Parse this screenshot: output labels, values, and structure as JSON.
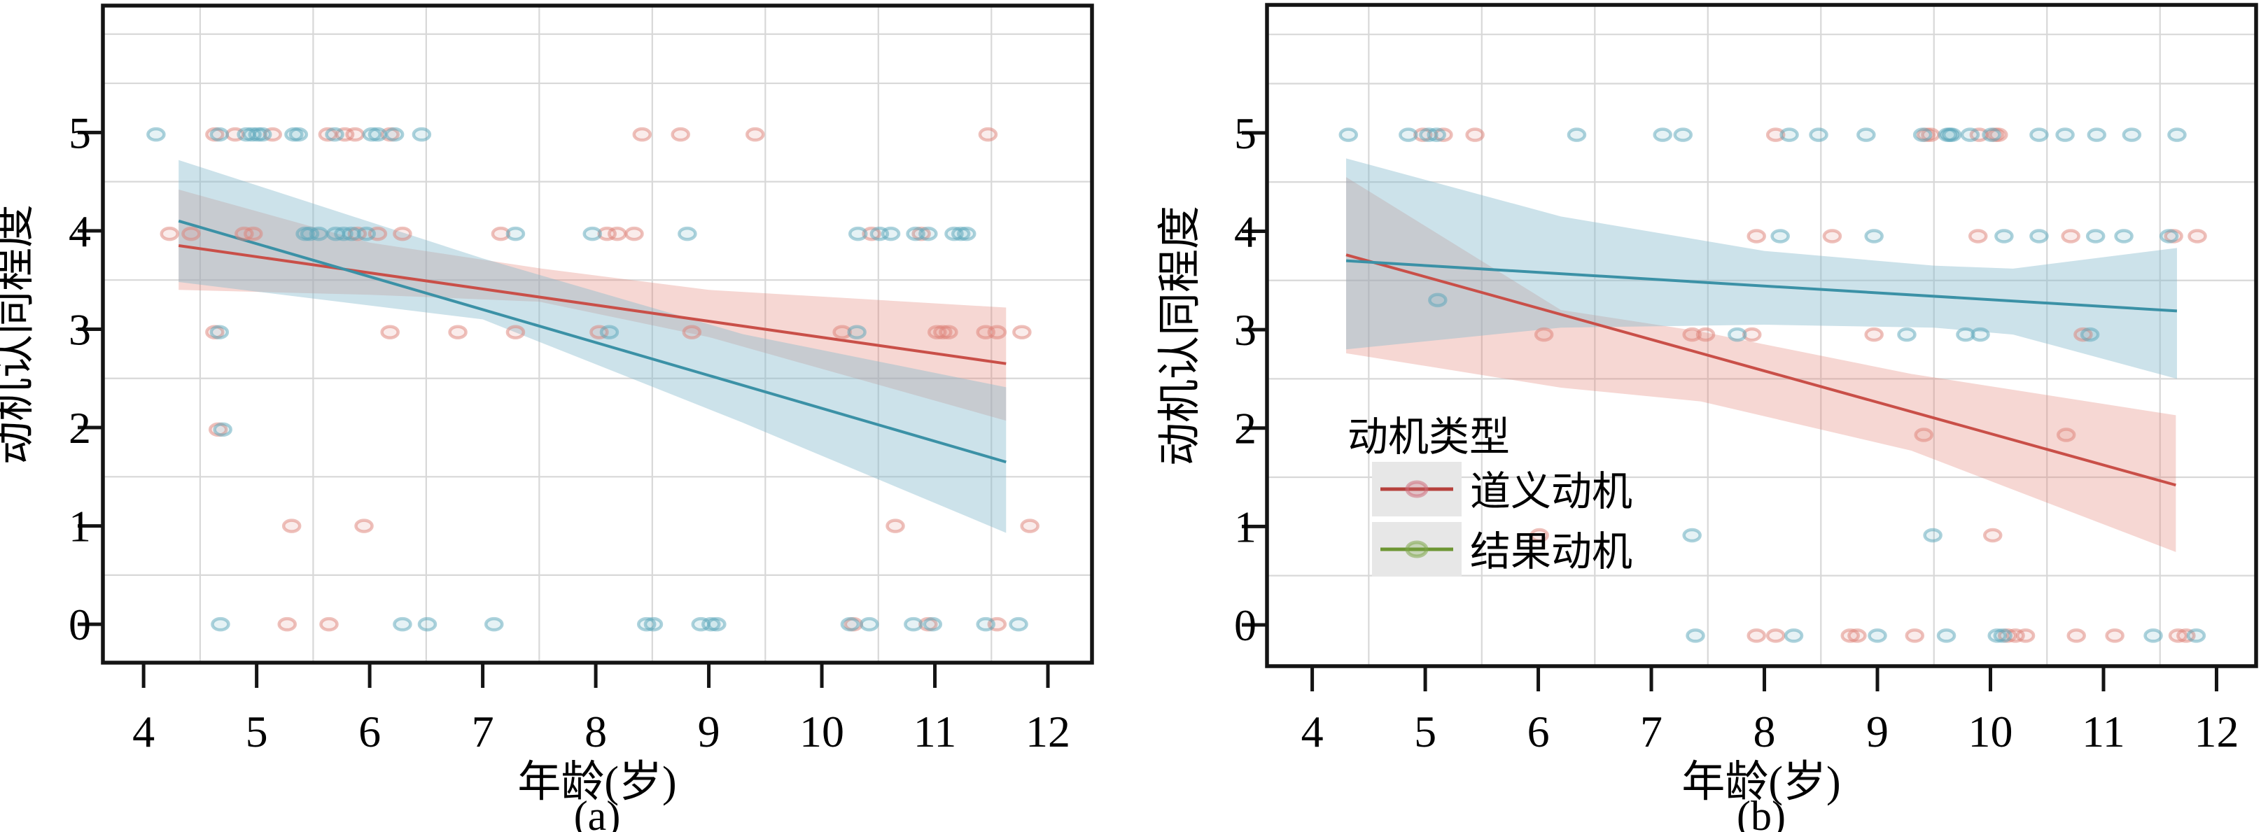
{
  "figure_title": "",
  "chart_data": [
    {
      "type": "scatter",
      "panel_id": "a",
      "caption": "(a)",
      "xlabel": "年龄(岁)",
      "ylabel": "动机认同程度",
      "x_ticks": [
        4,
        5,
        6,
        7,
        8,
        9,
        10,
        11,
        12
      ],
      "y_ticks": [
        0,
        1,
        2,
        3,
        4,
        5
      ],
      "xlim": [
        3.64,
        12.39
      ],
      "ylim": [
        -0.39,
        6.29
      ],
      "grid_x": [
        4.5,
        5.5,
        6.5,
        7.5,
        8.5,
        9.5,
        10.5,
        11.5
      ],
      "grid_y": [
        0.5,
        1.5,
        2.5,
        3.5,
        4.5,
        5.5,
        6.0
      ],
      "grid_on": true,
      "legend_position": "none",
      "series": [
        {
          "name": "道义动机",
          "point_color": "#dd8278",
          "line_color": "#c94f48",
          "band_color": "#e07a6d",
          "band_opacity": 0.3,
          "points": [
            [
              4.63,
              4.98
            ],
            [
              4.81,
              4.98
            ],
            [
              5.14,
              4.98
            ],
            [
              5.63,
              4.98
            ],
            [
              5.78,
              4.98
            ],
            [
              5.87,
              4.98
            ],
            [
              6.18,
              4.98
            ],
            [
              8.41,
              4.98
            ],
            [
              8.75,
              4.98
            ],
            [
              9.41,
              4.98
            ],
            [
              11.47,
              4.98
            ],
            [
              4.23,
              3.97
            ],
            [
              4.42,
              3.97
            ],
            [
              4.89,
              3.97
            ],
            [
              4.97,
              3.97
            ],
            [
              5.89,
              3.97
            ],
            [
              6.07,
              3.97
            ],
            [
              6.29,
              3.97
            ],
            [
              7.16,
              3.97
            ],
            [
              8.1,
              3.97
            ],
            [
              8.19,
              3.97
            ],
            [
              8.34,
              3.97
            ],
            [
              10.44,
              3.97
            ],
            [
              10.88,
              3.97
            ],
            [
              4.63,
              2.97
            ],
            [
              6.18,
              2.97
            ],
            [
              6.78,
              2.97
            ],
            [
              7.29,
              2.97
            ],
            [
              8.03,
              2.97
            ],
            [
              8.85,
              2.97
            ],
            [
              10.18,
              2.97
            ],
            [
              11.02,
              2.97
            ],
            [
              11.07,
              2.97
            ],
            [
              11.12,
              2.97
            ],
            [
              11.45,
              2.97
            ],
            [
              11.55,
              2.97
            ],
            [
              11.77,
              2.97
            ],
            [
              4.66,
              1.98
            ],
            [
              5.31,
              1.0
            ],
            [
              5.95,
              1.0
            ],
            [
              10.65,
              1.0
            ],
            [
              11.84,
              1.0
            ],
            [
              5.27,
              0.0
            ],
            [
              5.64,
              0.0
            ],
            [
              10.28,
              0.0
            ],
            [
              10.94,
              0.0
            ],
            [
              11.55,
              0.0
            ]
          ],
          "trend": {
            "x": [
              4.31,
              11.63
            ],
            "y": [
              3.85,
              2.65
            ]
          },
          "band": {
            "x": [
              4.31,
              6.0,
              7.5,
              9.0,
              11.63
            ],
            "upper": [
              4.42,
              3.88,
              3.62,
              3.4,
              3.22
            ],
            "lower": [
              3.4,
              3.35,
              3.28,
              2.92,
              2.07
            ]
          }
        },
        {
          "name": "结果动机",
          "point_color": "#5aa5ba",
          "line_color": "#3b91a6",
          "band_color": "#85b9cd",
          "band_opacity": 0.42,
          "points": [
            [
              4.11,
              4.98
            ],
            [
              4.67,
              4.98
            ],
            [
              4.91,
              4.98
            ],
            [
              4.96,
              4.98
            ],
            [
              5.01,
              4.98
            ],
            [
              5.05,
              4.98
            ],
            [
              5.33,
              4.98
            ],
            [
              5.37,
              4.98
            ],
            [
              5.69,
              4.98
            ],
            [
              6.02,
              4.98
            ],
            [
              6.07,
              4.98
            ],
            [
              6.22,
              4.98
            ],
            [
              6.46,
              4.98
            ],
            [
              5.43,
              3.97
            ],
            [
              5.47,
              3.97
            ],
            [
              5.55,
              3.97
            ],
            [
              5.7,
              3.97
            ],
            [
              5.77,
              3.97
            ],
            [
              5.84,
              3.97
            ],
            [
              5.97,
              3.97
            ],
            [
              7.29,
              3.97
            ],
            [
              7.97,
              3.97
            ],
            [
              8.81,
              3.97
            ],
            [
              10.32,
              3.97
            ],
            [
              10.51,
              3.97
            ],
            [
              10.61,
              3.97
            ],
            [
              10.83,
              3.97
            ],
            [
              10.94,
              3.97
            ],
            [
              11.17,
              3.97
            ],
            [
              11.23,
              3.97
            ],
            [
              11.28,
              3.97
            ],
            [
              4.67,
              2.97
            ],
            [
              8.12,
              2.97
            ],
            [
              10.31,
              2.97
            ],
            [
              4.7,
              1.98
            ],
            [
              4.68,
              0.0
            ],
            [
              6.29,
              0.0
            ],
            [
              6.51,
              0.0
            ],
            [
              7.1,
              0.0
            ],
            [
              8.45,
              0.0
            ],
            [
              8.51,
              0.0
            ],
            [
              8.93,
              0.0
            ],
            [
              9.02,
              0.0
            ],
            [
              9.07,
              0.0
            ],
            [
              10.25,
              0.0
            ],
            [
              10.42,
              0.0
            ],
            [
              10.81,
              0.0
            ],
            [
              10.98,
              0.0
            ],
            [
              11.45,
              0.0
            ],
            [
              11.74,
              0.0
            ]
          ],
          "trend": {
            "x": [
              4.31,
              11.63
            ],
            "y": [
              4.1,
              1.65
            ]
          },
          "band": {
            "x": [
              4.31,
              7.0,
              9.3,
              11.63
            ],
            "upper": [
              4.72,
              3.72,
              2.95,
              2.41
            ],
            "lower": [
              3.48,
              3.1,
              2.05,
              0.93
            ]
          }
        }
      ]
    },
    {
      "type": "scatter",
      "panel_id": "b",
      "caption": "(b)",
      "xlabel": "年龄(岁)",
      "ylabel": "动机认同程度",
      "x_ticks": [
        4,
        5,
        6,
        7,
        8,
        9,
        10,
        11,
        12
      ],
      "y_ticks": [
        0,
        1,
        2,
        3,
        4,
        5
      ],
      "xlim": [
        3.6,
        12.35
      ],
      "ylim": [
        -0.42,
        6.3
      ],
      "grid_x": [
        4.5,
        5.5,
        6.5,
        7.5,
        8.5,
        9.5,
        10.5,
        11.5
      ],
      "grid_y": [
        0.5,
        1.5,
        2.5,
        3.5,
        4.5,
        5.5,
        6.0
      ],
      "grid_on": true,
      "legend_position": "inside-left-middle",
      "legend": {
        "title": "动机类型",
        "swatch_bg": "#e7e7e7",
        "entries": [
          {
            "label": "道义动机",
            "line_color": "#b6413c",
            "marker_color": "#cf6f7d"
          },
          {
            "label": "结果动机",
            "line_color": "#6d9634",
            "marker_color": "#7fa84d"
          }
        ]
      },
      "series": [
        {
          "name": "道义动机",
          "point_color": "#dd8278",
          "line_color": "#c94f48",
          "band_color": "#e07a6d",
          "band_opacity": 0.3,
          "points": [
            [
              4.98,
              4.98
            ],
            [
              5.16,
              4.98
            ],
            [
              5.44,
              4.98
            ],
            [
              8.1,
              4.98
            ],
            [
              9.43,
              4.98
            ],
            [
              9.47,
              4.98
            ],
            [
              9.9,
              4.98
            ],
            [
              10.04,
              4.98
            ],
            [
              10.07,
              4.98
            ],
            [
              7.93,
              3.95
            ],
            [
              8.6,
              3.95
            ],
            [
              9.89,
              3.95
            ],
            [
              10.71,
              3.95
            ],
            [
              11.62,
              3.95
            ],
            [
              11.83,
              3.95
            ],
            [
              6.05,
              2.95
            ],
            [
              7.36,
              2.95
            ],
            [
              7.48,
              2.95
            ],
            [
              7.89,
              2.95
            ],
            [
              8.97,
              2.95
            ],
            [
              10.82,
              2.95
            ],
            [
              9.41,
              1.93
            ],
            [
              10.67,
              1.93
            ],
            [
              6.01,
              0.91
            ],
            [
              10.02,
              0.91
            ],
            [
              7.93,
              -0.11
            ],
            [
              8.1,
              -0.11
            ],
            [
              8.76,
              -0.11
            ],
            [
              8.82,
              -0.11
            ],
            [
              9.33,
              -0.11
            ],
            [
              10.15,
              -0.11
            ],
            [
              10.22,
              -0.11
            ],
            [
              10.31,
              -0.11
            ],
            [
              10.76,
              -0.11
            ],
            [
              11.1,
              -0.11
            ],
            [
              11.66,
              -0.11
            ],
            [
              11.73,
              -0.11
            ]
          ],
          "trend": {
            "x": [
              4.3,
              11.64
            ],
            "y": [
              3.76,
              1.42
            ]
          },
          "band": {
            "x": [
              4.3,
              6.2,
              7.44,
              9.3,
              11.64
            ],
            "upper": [
              4.55,
              3.2,
              2.98,
              2.55,
              2.13
            ],
            "lower": [
              2.76,
              2.41,
              2.27,
              1.77,
              0.74
            ]
          }
        },
        {
          "name": "结果动机",
          "point_color": "#5aa5ba",
          "line_color": "#3b91a6",
          "band_color": "#85b9cd",
          "band_opacity": 0.42,
          "points": [
            [
              4.32,
              4.98
            ],
            [
              4.85,
              4.98
            ],
            [
              5.03,
              4.98
            ],
            [
              5.1,
              4.98
            ],
            [
              6.34,
              4.98
            ],
            [
              7.1,
              4.98
            ],
            [
              7.28,
              4.98
            ],
            [
              8.22,
              4.98
            ],
            [
              8.48,
              4.98
            ],
            [
              8.9,
              4.98
            ],
            [
              9.4,
              4.98
            ],
            [
              9.62,
              4.98
            ],
            [
              9.64,
              4.98
            ],
            [
              9.66,
              4.98
            ],
            [
              9.82,
              4.98
            ],
            [
              10.01,
              4.98
            ],
            [
              10.43,
              4.98
            ],
            [
              10.66,
              4.98
            ],
            [
              10.94,
              4.98
            ],
            [
              11.25,
              4.98
            ],
            [
              11.65,
              4.98
            ],
            [
              8.14,
              3.95
            ],
            [
              8.97,
              3.95
            ],
            [
              10.12,
              3.95
            ],
            [
              10.43,
              3.95
            ],
            [
              10.93,
              3.95
            ],
            [
              11.18,
              3.95
            ],
            [
              11.58,
              3.95
            ],
            [
              5.11,
              3.3
            ],
            [
              7.76,
              2.95
            ],
            [
              9.26,
              2.95
            ],
            [
              9.78,
              2.95
            ],
            [
              9.91,
              2.95
            ],
            [
              10.88,
              2.95
            ],
            [
              7.36,
              0.91
            ],
            [
              9.49,
              0.91
            ],
            [
              7.39,
              -0.11
            ],
            [
              8.26,
              -0.11
            ],
            [
              9.0,
              -0.11
            ],
            [
              9.61,
              -0.11
            ],
            [
              10.06,
              -0.11
            ],
            [
              10.11,
              -0.11
            ],
            [
              11.44,
              -0.11
            ],
            [
              11.82,
              -0.11
            ]
          ],
          "trend": {
            "x": [
              4.3,
              11.65
            ],
            "y": [
              3.7,
              3.19
            ]
          },
          "band": {
            "x": [
              4.3,
              6.2,
              8.0,
              9.5,
              10.2,
              11.65
            ],
            "upper": [
              4.74,
              4.15,
              3.8,
              3.65,
              3.62,
              3.83
            ],
            "lower": [
              2.8,
              3.02,
              3.05,
              3.02,
              2.95,
              2.5
            ]
          }
        }
      ]
    }
  ]
}
